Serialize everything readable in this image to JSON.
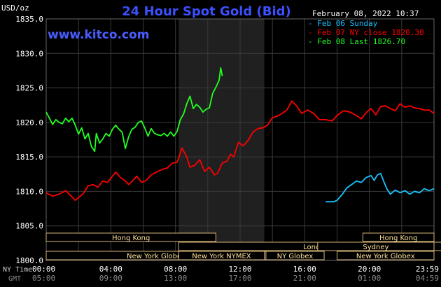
{
  "chart_data": {
    "type": "line",
    "title": "24 Hour Spot Gold (Bid)",
    "source": "www.kitco.com",
    "timestamp": "February 08, 2022 10:37",
    "ylabel": "USD/oz",
    "ylim": [
      1800,
      1835
    ],
    "yticks": [
      "1800.0",
      "1805.0",
      "1810.0",
      "1815.0",
      "1820.0",
      "1825.0",
      "1830.0",
      "1835.0"
    ],
    "xaxis": {
      "ny_label": "NY Time",
      "gmt_label": "GMT",
      "ny_ticks": [
        "00:00",
        "04:00",
        "08:00",
        "12:00",
        "16:00",
        "20:00",
        "23:59"
      ],
      "gmt_ticks": [
        "05:00",
        "09:00",
        "13:00",
        "17:00",
        "21:00",
        "01:00",
        "04:59"
      ]
    },
    "grid": true,
    "legend_position": "top-right",
    "highlight_session": {
      "start": 8.2,
      "end": 13.5
    },
    "markets": [
      {
        "label": "Hong Kong",
        "start": 0,
        "end": 10.5,
        "row": 0
      },
      {
        "label": "London",
        "start": 8.2,
        "end": 25.2,
        "row": 1
      },
      {
        "label": "New York Globex",
        "start": 0,
        "end": 13.6,
        "row": 2
      },
      {
        "label": "New York NYMEX",
        "start": 8.2,
        "end": 13.5,
        "row": 2
      },
      {
        "label": "NY Globex",
        "start": 13.6,
        "end": 17.2,
        "row": 2
      },
      {
        "label": "Hong Kong",
        "start": 19.6,
        "end": 24,
        "row": 0
      },
      {
        "label": "Sydney",
        "start": 16.8,
        "end": 24,
        "row": 1
      },
      {
        "label": "New York Globex",
        "start": 18,
        "end": 24,
        "row": 2
      }
    ],
    "series": [
      {
        "name": "Feb 06 Sunday",
        "color": "#19c3ff",
        "points": [
          [
            17.3,
            1808.5
          ],
          [
            17.8,
            1808.5
          ],
          [
            18.0,
            1808.7
          ],
          [
            18.3,
            1809.5
          ],
          [
            18.6,
            1810.5
          ],
          [
            18.9,
            1811.0
          ],
          [
            19.2,
            1811.5
          ],
          [
            19.5,
            1811.3
          ],
          [
            19.8,
            1812.0
          ],
          [
            20.1,
            1812.3
          ],
          [
            20.3,
            1811.6
          ],
          [
            20.5,
            1812.4
          ],
          [
            20.7,
            1812.6
          ],
          [
            20.9,
            1811.4
          ],
          [
            21.1,
            1810.3
          ],
          [
            21.3,
            1809.6
          ],
          [
            21.6,
            1810.2
          ],
          [
            21.9,
            1809.8
          ],
          [
            22.2,
            1810.1
          ],
          [
            22.5,
            1809.6
          ],
          [
            22.8,
            1810.0
          ],
          [
            23.1,
            1809.8
          ],
          [
            23.4,
            1810.4
          ],
          [
            23.7,
            1810.1
          ],
          [
            24.0,
            1810.4
          ]
        ]
      },
      {
        "name": "Feb 07 NY close 1820.30",
        "color": "#ff0000",
        "points": [
          [
            0.0,
            1809.8
          ],
          [
            0.4,
            1809.3
          ],
          [
            0.8,
            1809.6
          ],
          [
            1.2,
            1810.1
          ],
          [
            1.6,
            1809.2
          ],
          [
            1.8,
            1808.7
          ],
          [
            2.0,
            1809.1
          ],
          [
            2.3,
            1809.7
          ],
          [
            2.6,
            1810.8
          ],
          [
            2.9,
            1811.0
          ],
          [
            3.2,
            1810.6
          ],
          [
            3.5,
            1811.5
          ],
          [
            3.8,
            1811.3
          ],
          [
            4.0,
            1811.9
          ],
          [
            4.3,
            1812.8
          ],
          [
            4.6,
            1812.0
          ],
          [
            4.9,
            1811.5
          ],
          [
            5.1,
            1811.0
          ],
          [
            5.3,
            1811.4
          ],
          [
            5.6,
            1812.2
          ],
          [
            5.9,
            1811.3
          ],
          [
            6.2,
            1811.6
          ],
          [
            6.5,
            1812.4
          ],
          [
            6.9,
            1812.9
          ],
          [
            7.2,
            1813.2
          ],
          [
            7.5,
            1813.4
          ],
          [
            7.8,
            1814.1
          ],
          [
            8.1,
            1814.2
          ],
          [
            8.4,
            1816.3
          ],
          [
            8.7,
            1815.0
          ],
          [
            8.9,
            1813.5
          ],
          [
            9.2,
            1813.8
          ],
          [
            9.5,
            1814.6
          ],
          [
            9.8,
            1812.9
          ],
          [
            10.1,
            1813.5
          ],
          [
            10.4,
            1812.4
          ],
          [
            10.6,
            1812.6
          ],
          [
            10.9,
            1814.1
          ],
          [
            11.2,
            1814.4
          ],
          [
            11.4,
            1815.4
          ],
          [
            11.6,
            1815.0
          ],
          [
            11.9,
            1817.1
          ],
          [
            12.2,
            1816.6
          ],
          [
            12.5,
            1817.4
          ],
          [
            12.8,
            1818.6
          ],
          [
            13.1,
            1819.1
          ],
          [
            13.4,
            1819.2
          ],
          [
            13.7,
            1819.6
          ],
          [
            14.0,
            1820.7
          ],
          [
            14.3,
            1820.9
          ],
          [
            14.6,
            1821.3
          ],
          [
            14.9,
            1821.8
          ],
          [
            15.2,
            1823.1
          ],
          [
            15.5,
            1822.4
          ],
          [
            15.8,
            1821.3
          ],
          [
            16.2,
            1821.8
          ],
          [
            16.6,
            1821.2
          ],
          [
            16.9,
            1820.4
          ],
          [
            17.3,
            1820.4
          ],
          [
            17.7,
            1820.2
          ],
          [
            18.0,
            1821.0
          ],
          [
            18.4,
            1821.7
          ],
          [
            18.8,
            1821.5
          ],
          [
            19.2,
            1821.0
          ],
          [
            19.5,
            1820.5
          ],
          [
            19.8,
            1821.4
          ],
          [
            20.1,
            1822.0
          ],
          [
            20.4,
            1821.1
          ],
          [
            20.7,
            1822.3
          ],
          [
            21.0,
            1822.4
          ],
          [
            21.3,
            1822.0
          ],
          [
            21.6,
            1821.7
          ],
          [
            21.9,
            1822.7
          ],
          [
            22.2,
            1822.2
          ],
          [
            22.5,
            1822.4
          ],
          [
            22.8,
            1822.1
          ],
          [
            23.1,
            1822.0
          ],
          [
            23.4,
            1821.8
          ],
          [
            23.7,
            1821.8
          ],
          [
            24.0,
            1821.3
          ]
        ]
      },
      {
        "name": "Feb 08 Last 1826.70",
        "color": "#22ff22",
        "points": [
          [
            0.0,
            1821.5
          ],
          [
            0.2,
            1820.6
          ],
          [
            0.4,
            1819.7
          ],
          [
            0.6,
            1820.4
          ],
          [
            0.8,
            1820.0
          ],
          [
            1.0,
            1819.8
          ],
          [
            1.2,
            1820.6
          ],
          [
            1.4,
            1820.1
          ],
          [
            1.6,
            1820.6
          ],
          [
            1.8,
            1819.6
          ],
          [
            2.0,
            1818.3
          ],
          [
            2.2,
            1819.2
          ],
          [
            2.4,
            1817.6
          ],
          [
            2.6,
            1818.4
          ],
          [
            2.8,
            1816.5
          ],
          [
            3.0,
            1815.8
          ],
          [
            3.1,
            1818.4
          ],
          [
            3.3,
            1817.0
          ],
          [
            3.5,
            1817.6
          ],
          [
            3.7,
            1818.4
          ],
          [
            3.9,
            1818.0
          ],
          [
            4.1,
            1819.0
          ],
          [
            4.3,
            1819.6
          ],
          [
            4.5,
            1819.0
          ],
          [
            4.7,
            1818.6
          ],
          [
            4.9,
            1816.2
          ],
          [
            5.1,
            1817.9
          ],
          [
            5.3,
            1819.0
          ],
          [
            5.5,
            1819.3
          ],
          [
            5.7,
            1820.0
          ],
          [
            5.9,
            1820.2
          ],
          [
            6.1,
            1819.2
          ],
          [
            6.3,
            1818.0
          ],
          [
            6.5,
            1819.1
          ],
          [
            6.7,
            1818.4
          ],
          [
            6.9,
            1818.2
          ],
          [
            7.1,
            1818.1
          ],
          [
            7.3,
            1818.4
          ],
          [
            7.5,
            1818.0
          ],
          [
            7.7,
            1818.6
          ],
          [
            7.9,
            1818.0
          ],
          [
            8.1,
            1818.7
          ],
          [
            8.3,
            1820.4
          ],
          [
            8.5,
            1821.2
          ],
          [
            8.7,
            1822.7
          ],
          [
            8.9,
            1823.8
          ],
          [
            9.1,
            1822.0
          ],
          [
            9.3,
            1822.6
          ],
          [
            9.5,
            1822.2
          ],
          [
            9.7,
            1821.5
          ],
          [
            9.9,
            1821.9
          ],
          [
            10.1,
            1822.1
          ],
          [
            10.3,
            1824.2
          ],
          [
            10.5,
            1825.1
          ],
          [
            10.7,
            1826.1
          ],
          [
            10.8,
            1827.9
          ],
          [
            10.9,
            1826.7
          ]
        ]
      }
    ]
  }
}
